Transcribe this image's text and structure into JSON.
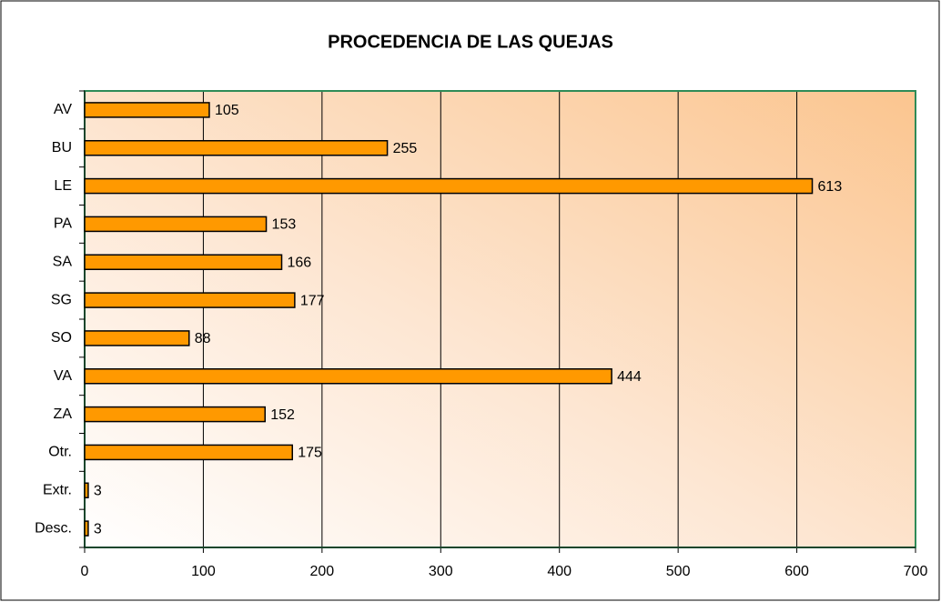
{
  "chart_data": {
    "type": "bar",
    "orientation": "horizontal",
    "title": "PROCEDENCIA DE LAS QUEJAS",
    "categories": [
      "AV",
      "BU",
      "LE",
      "PA",
      "SA",
      "SG",
      "SO",
      "VA",
      "ZA",
      "Otr.",
      "Extr.",
      "Desc."
    ],
    "values": [
      105,
      255,
      613,
      153,
      166,
      177,
      88,
      444,
      152,
      175,
      3,
      3
    ],
    "color": "#ff9900",
    "xlim": [
      0,
      700
    ],
    "xticks": [
      0,
      100,
      200,
      300,
      400,
      500,
      600,
      700
    ],
    "grid": true
  }
}
